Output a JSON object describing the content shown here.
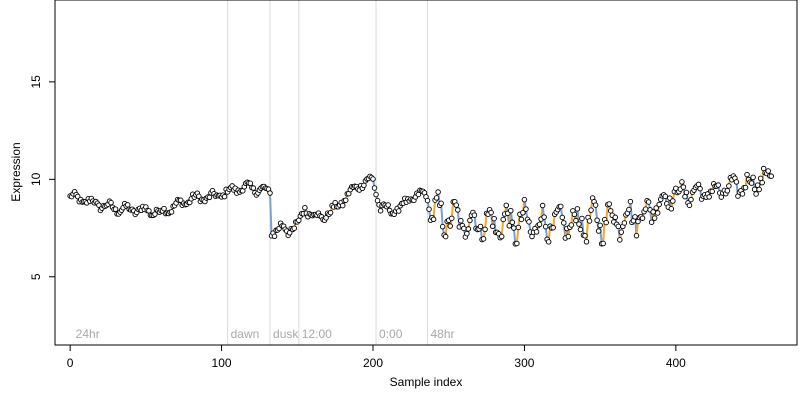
{
  "chart_data": {
    "type": "scatter",
    "title": "",
    "xlabel": "Sample index",
    "ylabel": "Expression",
    "xlim": [
      -10,
      480
    ],
    "ylim": [
      1.5,
      19.2
    ],
    "xticks": [
      "0",
      "100",
      "200",
      "300",
      "400"
    ],
    "yticks": [
      "5",
      "10",
      "15"
    ],
    "grid": false,
    "legend": "none",
    "colors": {
      "segment_up": "#f5a623",
      "segment_down": "#7a9ed8",
      "point_fill": "#ffffff",
      "point_stroke": "#000000",
      "phase_line": "#d9d9d9",
      "phase_label": "#a8a8a8"
    },
    "phase_markers": [
      {
        "x": 104,
        "label": "dawn"
      },
      {
        "x": 132,
        "label": "dusk"
      },
      {
        "x": 151,
        "label": "12:00"
      },
      {
        "x": 202,
        "label": "0:00"
      },
      {
        "x": 236,
        "label": "48hr"
      }
    ],
    "phase_start_label": {
      "x": 3,
      "label": "24hr"
    },
    "series": [
      {
        "knots": [
          [
            0,
            9.1
          ],
          [
            20,
            8.7
          ],
          [
            30,
            8.5
          ],
          [
            50,
            8.4
          ],
          [
            60,
            8.3
          ],
          [
            80,
            9.0
          ],
          [
            95,
            9.1
          ],
          [
            105,
            9.4
          ],
          [
            115,
            9.6
          ],
          [
            125,
            9.5
          ],
          [
            132,
            9.3
          ],
          [
            133,
            7.5
          ],
          [
            140,
            7.4
          ],
          [
            150,
            7.6
          ],
          [
            155,
            8.5
          ],
          [
            165,
            8.0
          ],
          [
            175,
            8.5
          ],
          [
            190,
            9.7
          ],
          [
            200,
            10.0
          ],
          [
            205,
            8.5
          ],
          [
            215,
            8.4
          ],
          [
            225,
            9.0
          ],
          [
            235,
            9.3
          ],
          [
            238,
            8.2
          ],
          [
            250,
            8.0
          ],
          [
            260,
            7.8
          ],
          [
            280,
            7.7
          ],
          [
            300,
            7.7
          ],
          [
            320,
            7.7
          ],
          [
            340,
            7.8
          ],
          [
            360,
            8.0
          ],
          [
            380,
            8.2
          ],
          [
            390,
            8.8
          ],
          [
            400,
            9.3
          ],
          [
            420,
            9.3
          ],
          [
            440,
            9.6
          ],
          [
            450,
            9.8
          ],
          [
            460,
            10.1
          ],
          [
            463,
            10.3
          ]
        ],
        "count": 464,
        "start": 0,
        "step": 1
      }
    ]
  }
}
